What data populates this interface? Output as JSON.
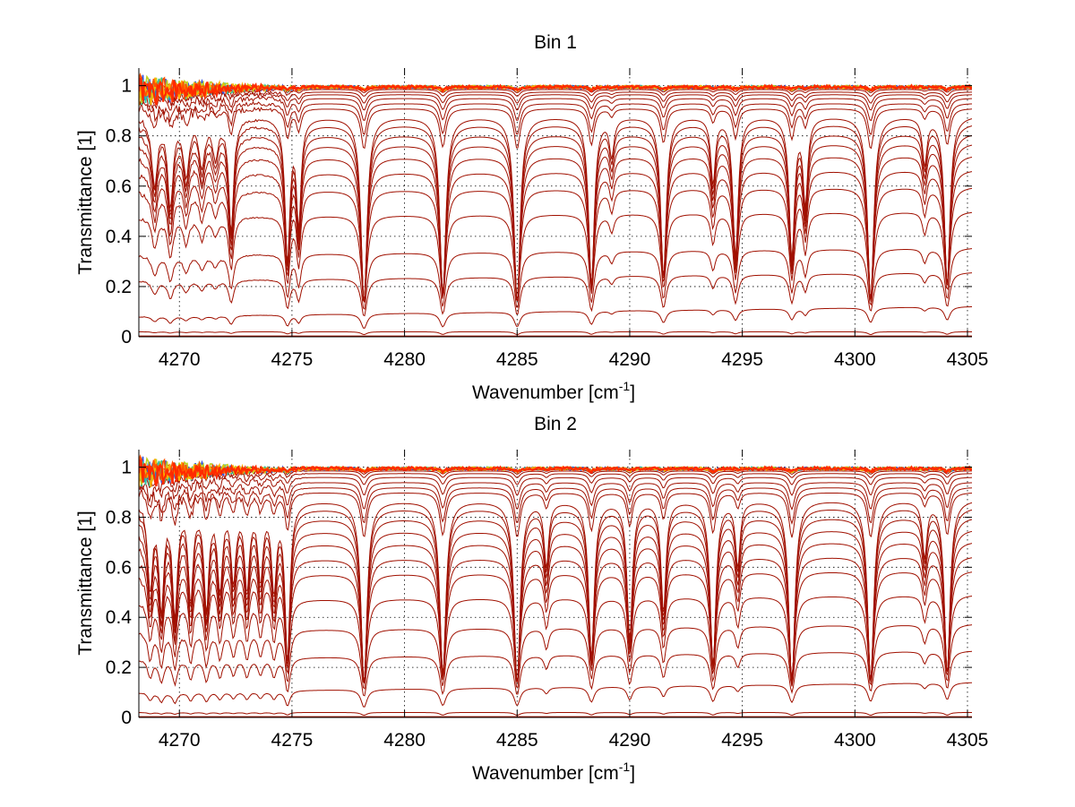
{
  "figure": {
    "background": "#ffffff"
  },
  "chart_data": [
    {
      "type": "line",
      "title": "Bin 1",
      "xlabel": "Wavenumber [cm",
      "xlabel_sup": "-1",
      "xlabel_end": "]",
      "ylabel": "Transmittance [1]",
      "xlim": [
        4268.2,
        4305.2
      ],
      "ylim": [
        0,
        1.07
      ],
      "xticks": [
        4270,
        4275,
        4280,
        4285,
        4290,
        4295,
        4300,
        4305
      ],
      "xtick_labels": [
        "4270",
        "4275",
        "4280",
        "4285",
        "4290",
        "4295",
        "4300",
        "4305"
      ],
      "yticks": [
        0,
        0.2,
        0.4,
        0.6,
        0.8,
        1
      ],
      "ytick_labels": [
        "0",
        "0.2",
        "0.4",
        "0.6",
        "0.8",
        "1"
      ],
      "grid": true,
      "line_color": "#a01000",
      "top_colors": [
        "#3050e0",
        "#30c0a0",
        "#c0d020",
        "#ffb000",
        "#ff5000",
        "#ff2a00"
      ],
      "absorption_lines": [
        {
          "x": 4268.9,
          "depth": 0.35,
          "width": 0.15
        },
        {
          "x": 4269.6,
          "depth": 0.45,
          "width": 0.15
        },
        {
          "x": 4270.3,
          "depth": 0.3,
          "width": 0.15
        },
        {
          "x": 4271.0,
          "depth": 0.25,
          "width": 0.15
        },
        {
          "x": 4271.6,
          "depth": 0.2,
          "width": 0.15
        },
        {
          "x": 4272.3,
          "depth": 0.6,
          "width": 0.13
        },
        {
          "x": 4274.8,
          "depth": 0.75,
          "width": 0.13
        },
        {
          "x": 4275.3,
          "depth": 0.55,
          "width": 0.12
        },
        {
          "x": 4278.2,
          "depth": 1.0,
          "width": 0.16
        },
        {
          "x": 4281.7,
          "depth": 0.95,
          "width": 0.16
        },
        {
          "x": 4285.0,
          "depth": 1.0,
          "width": 0.16
        },
        {
          "x": 4288.3,
          "depth": 0.9,
          "width": 0.15
        },
        {
          "x": 4289.2,
          "depth": 0.2,
          "width": 0.12
        },
        {
          "x": 4291.5,
          "depth": 0.85,
          "width": 0.15
        },
        {
          "x": 4293.7,
          "depth": 0.35,
          "width": 0.12
        },
        {
          "x": 4294.7,
          "depth": 0.75,
          "width": 0.14
        },
        {
          "x": 4297.2,
          "depth": 0.75,
          "width": 0.14
        },
        {
          "x": 4297.8,
          "depth": 0.45,
          "width": 0.12
        },
        {
          "x": 4300.7,
          "depth": 1.0,
          "width": 0.16
        },
        {
          "x": 4303.1,
          "depth": 0.25,
          "width": 0.12
        },
        {
          "x": 4304.1,
          "depth": 0.9,
          "width": 0.15
        }
      ],
      "series_levels": [
        0.0,
        0.02,
        0.1,
        0.24,
        0.34,
        0.49,
        0.59,
        0.66,
        0.72,
        0.77,
        0.81,
        0.85,
        0.88,
        0.91,
        0.93,
        0.95,
        0.965,
        0.975,
        0.985,
        0.99
      ]
    },
    {
      "type": "line",
      "title": "Bin 2",
      "xlabel": "Wavenumber [cm",
      "xlabel_sup": "-1",
      "xlabel_end": "]",
      "ylabel": "Transmittance [1]",
      "xlim": [
        4268.2,
        4305.2
      ],
      "ylim": [
        0,
        1.07
      ],
      "xticks": [
        4270,
        4275,
        4280,
        4285,
        4290,
        4295,
        4300,
        4305
      ],
      "xtick_labels": [
        "4270",
        "4275",
        "4280",
        "4285",
        "4290",
        "4295",
        "4300",
        "4305"
      ],
      "yticks": [
        0,
        0.2,
        0.4,
        0.6,
        0.8,
        1
      ],
      "ytick_labels": [
        "0",
        "0.2",
        "0.4",
        "0.6",
        "0.8",
        "1"
      ],
      "grid": true,
      "line_color": "#a01000",
      "top_colors": [
        "#3050e0",
        "#30c0a0",
        "#c0d020",
        "#ffb000",
        "#ff5000",
        "#ff2a00"
      ],
      "absorption_lines": [
        {
          "x": 4268.7,
          "depth": 0.45,
          "width": 0.13
        },
        {
          "x": 4269.2,
          "depth": 0.55,
          "width": 0.13
        },
        {
          "x": 4269.8,
          "depth": 0.6,
          "width": 0.13
        },
        {
          "x": 4270.5,
          "depth": 0.5,
          "width": 0.13
        },
        {
          "x": 4271.2,
          "depth": 0.55,
          "width": 0.13
        },
        {
          "x": 4271.8,
          "depth": 0.45,
          "width": 0.13
        },
        {
          "x": 4272.4,
          "depth": 0.4,
          "width": 0.13
        },
        {
          "x": 4273.0,
          "depth": 0.45,
          "width": 0.13
        },
        {
          "x": 4273.6,
          "depth": 0.4,
          "width": 0.13
        },
        {
          "x": 4274.2,
          "depth": 0.45,
          "width": 0.13
        },
        {
          "x": 4274.8,
          "depth": 0.85,
          "width": 0.13
        },
        {
          "x": 4278.2,
          "depth": 1.0,
          "width": 0.16
        },
        {
          "x": 4281.7,
          "depth": 0.95,
          "width": 0.16
        },
        {
          "x": 4285.0,
          "depth": 1.0,
          "width": 0.16
        },
        {
          "x": 4286.3,
          "depth": 0.35,
          "width": 0.12
        },
        {
          "x": 4288.3,
          "depth": 0.85,
          "width": 0.15
        },
        {
          "x": 4290.0,
          "depth": 0.75,
          "width": 0.14
        },
        {
          "x": 4291.5,
          "depth": 0.6,
          "width": 0.13
        },
        {
          "x": 4293.7,
          "depth": 0.9,
          "width": 0.15
        },
        {
          "x": 4294.8,
          "depth": 0.35,
          "width": 0.12
        },
        {
          "x": 4297.2,
          "depth": 1.0,
          "width": 0.16
        },
        {
          "x": 4300.7,
          "depth": 1.0,
          "width": 0.16
        },
        {
          "x": 4303.1,
          "depth": 0.3,
          "width": 0.12
        },
        {
          "x": 4304.1,
          "depth": 0.95,
          "width": 0.15
        }
      ],
      "series_levels": [
        0.0,
        0.02,
        0.12,
        0.25,
        0.36,
        0.48,
        0.58,
        0.64,
        0.7,
        0.75,
        0.8,
        0.84,
        0.87,
        0.9,
        0.92,
        0.94,
        0.96,
        0.975,
        0.985,
        0.99
      ]
    }
  ]
}
